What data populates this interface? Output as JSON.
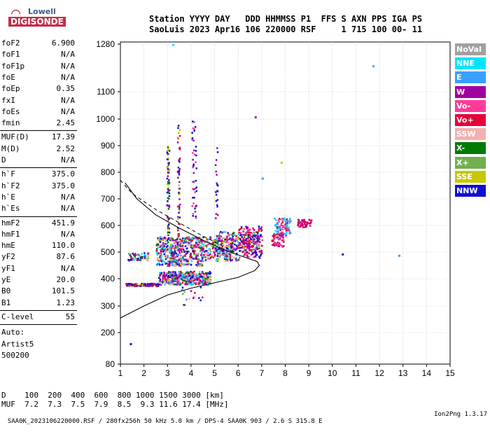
{
  "logo": {
    "brand_top": "Lowell",
    "brand_bottom": "DIGISONDE"
  },
  "header": {
    "line1": "Station YYYY DAY   DDD HHMMSS P1  FFS S AXN PPS IGA PS",
    "line2": "SaoLuis 2023 Apr16 106 220000 RSF     1 715 100 00- 11"
  },
  "params": [
    {
      "name": "foF2",
      "value": "6.900"
    },
    {
      "name": "foF1",
      "value": "N/A"
    },
    {
      "name": "foF1p",
      "value": "N/A"
    },
    {
      "name": "foE",
      "value": "N/A"
    },
    {
      "name": "foEp",
      "value": "0.35"
    },
    {
      "name": "fxI",
      "value": "N/A"
    },
    {
      "name": "foEs",
      "value": "N/A"
    },
    {
      "name": "fmin",
      "value": "2.45"
    },
    {
      "name": "MUF(D)",
      "value": "17.39"
    },
    {
      "name": "M(D)",
      "value": "2.52"
    },
    {
      "name": "D",
      "value": "N/A"
    },
    {
      "name": "h`F",
      "value": "375.0"
    },
    {
      "name": "h`F2",
      "value": "375.0"
    },
    {
      "name": "h`E",
      "value": "N/A"
    },
    {
      "name": "h`Es",
      "value": "N/A"
    },
    {
      "name": "hmF2",
      "value": "451.9"
    },
    {
      "name": "hmF1",
      "value": "N/A"
    },
    {
      "name": "hmE",
      "value": "110.0"
    },
    {
      "name": "yF2",
      "value": "87.6"
    },
    {
      "name": "yF1",
      "value": "N/A"
    },
    {
      "name": "yE",
      "value": "20.0"
    },
    {
      "name": "B0",
      "value": "101.5"
    },
    {
      "name": "B1",
      "value": "1.23"
    },
    {
      "name": "C-level",
      "value": "55"
    }
  ],
  "auto": {
    "label": "Auto:",
    "software": "Artist5",
    "version": "500200"
  },
  "legend": [
    {
      "label": "NoVal",
      "color": "#a0a0a0"
    },
    {
      "label": "NNE",
      "color": "#00e5ff"
    },
    {
      "label": "E",
      "color": "#3aa0ff"
    },
    {
      "label": "W",
      "color": "#a000a0"
    },
    {
      "label": "Vo-",
      "color": "#ff3b9a"
    },
    {
      "label": "Vo+",
      "color": "#e8003a"
    },
    {
      "label": "SSW",
      "color": "#f4b0b0"
    },
    {
      "label": "X-",
      "color": "#007a00"
    },
    {
      "label": "X+",
      "color": "#70b050"
    },
    {
      "label": "SSE",
      "color": "#c8c800"
    },
    {
      "label": "NNW",
      "color": "#1010d0"
    }
  ],
  "chart_data": {
    "type": "scatter",
    "x_ticks": [
      1,
      2,
      3,
      4,
      5,
      6,
      7,
      8,
      9,
      10,
      11,
      12,
      13,
      14,
      15
    ],
    "y_ticks": [
      80,
      200,
      300,
      400,
      500,
      600,
      700,
      800,
      900,
      1000,
      1100,
      1280
    ],
    "xlim": [
      1,
      15
    ],
    "ylim": [
      80,
      1280
    ],
    "grid": true,
    "profile_curve": [
      [
        1,
        255
      ],
      [
        2,
        300
      ],
      [
        3,
        340
      ],
      [
        4,
        365
      ],
      [
        5,
        385
      ],
      [
        6,
        405
      ],
      [
        6.7,
        430
      ],
      [
        6.9,
        450
      ],
      [
        6.8,
        465
      ],
      [
        6.3,
        480
      ],
      [
        5.5,
        505
      ],
      [
        4.5,
        545
      ],
      [
        3.5,
        590
      ],
      [
        2.5,
        640
      ],
      [
        1.7,
        700
      ],
      [
        1.2,
        760
      ]
    ],
    "dashed_curve": [
      [
        1,
        770
      ],
      [
        1.5,
        720
      ],
      [
        2.5,
        660
      ],
      [
        3.5,
        610
      ],
      [
        4.5,
        560
      ],
      [
        5.2,
        530
      ],
      [
        5.8,
        500
      ]
    ]
  },
  "footer": {
    "d_row": "D    100  200  400  600  800 1000 1500 3000 [km]",
    "muf_row": "MUF  7.2  7.3  7.5  7.9  8.5  9.3 11.6 17.4 [MHz]"
  },
  "bottom": {
    "left": "SAA0K_2023106220000.RSF / 280fx256h 50 kHz 5.0 km / DPS-4 SAA0K 903 / 2.6 S 315.8 E",
    "right": "Ion2Png 1.3.17"
  }
}
